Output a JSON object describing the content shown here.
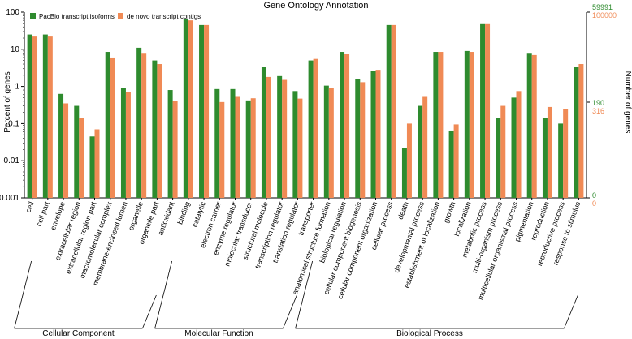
{
  "chart_data": {
    "type": "bar",
    "title": "Gene Ontology Annotation",
    "ylabel": "Percent of genes",
    "y2label": "Number of genes",
    "yscale": "log",
    "ylim": [
      0.001,
      100
    ],
    "yticks": [
      "0.001",
      "0.01",
      "0.1",
      "1",
      "10",
      "100"
    ],
    "right_axis": {
      "series1": {
        "top": "59991",
        "mid": "190",
        "bottom": "0"
      },
      "series2": {
        "top": "100000",
        "mid": "316",
        "bottom": "0"
      }
    },
    "colors": {
      "series1": "#2e8b2e",
      "series2": "#f08a55",
      "axis": "#000000"
    },
    "legend": [
      {
        "name": "PacBio transcript isoforms"
      },
      {
        "name": "de novo transcript contigs"
      }
    ],
    "categories": [
      "cell",
      "cell part",
      "envelope",
      "extracellular region",
      "extracellular region part",
      "macromolecular complex",
      "membrane-enclosed lumen",
      "organelle",
      "organelle part",
      "antioxidant",
      "binding",
      "catalytic",
      "electron carrier",
      "enzyme regulator",
      "molecular transducer",
      "structural molecule",
      "transcription regulator",
      "translation regulator",
      "transporter",
      "anatomical structure formation",
      "biological regulation",
      "cellular component biogenesis",
      "cellular component organization",
      "cellular process",
      "death",
      "developmental process",
      "establishment of localization",
      "growth",
      "localization",
      "metabolic process",
      "multi-organism process",
      "multicellular organismal process",
      "pigmentation",
      "reproduction",
      "reproductive process",
      "response to stimulus"
    ],
    "series": [
      {
        "name": "PacBio transcript isoforms",
        "values": [
          25,
          25,
          0.63,
          0.3,
          0.045,
          8.5,
          0.9,
          11,
          5,
          0.8,
          65,
          45,
          0.85,
          0.85,
          0.42,
          3.3,
          1.9,
          0.75,
          5,
          1.05,
          8.5,
          1.6,
          2.6,
          45,
          0.022,
          0.3,
          8.5,
          0.065,
          9,
          50,
          0.14,
          0.5,
          8,
          0.14,
          0.1,
          3.3
        ]
      },
      {
        "name": "de novo transcript contigs",
        "values": [
          22,
          22,
          0.35,
          0.14,
          0.07,
          6,
          0.72,
          8,
          4,
          0.4,
          60,
          45,
          0.38,
          0.55,
          0.48,
          1.8,
          1.5,
          0.47,
          5.5,
          0.9,
          7.5,
          1.3,
          2.8,
          45,
          0.1,
          0.55,
          8.5,
          0.095,
          8.5,
          50,
          0.3,
          0.75,
          7,
          0.28,
          0.25,
          4
        ]
      }
    ],
    "groups": [
      {
        "label": "Cellular Component",
        "start": 0,
        "end": 8
      },
      {
        "label": "Molecular Function",
        "start": 9,
        "end": 17
      },
      {
        "label": "Biological Process",
        "start": 18,
        "end": 35
      }
    ]
  }
}
